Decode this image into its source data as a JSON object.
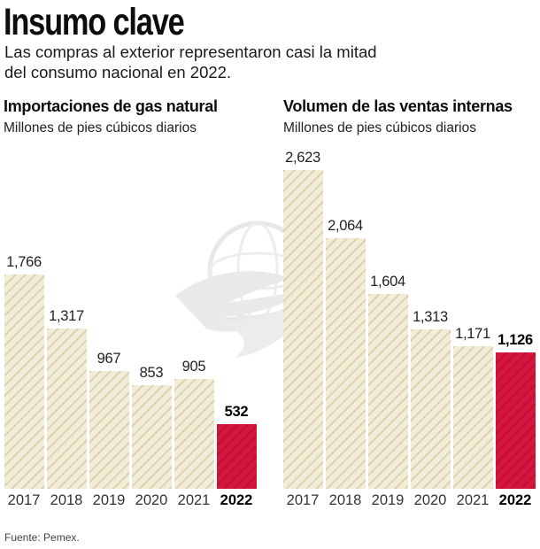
{
  "header": {
    "title": "Insumo clave",
    "subtitle_line1": "Las compras al exterior representaron casi la mitad",
    "subtitle_line2": "del consumo nacional en 2022."
  },
  "source": "Fuente: Pemex.",
  "watermark_icon": "eagle-globe-watermark",
  "colors": {
    "bar_beige": "#f2edd9",
    "bar_beige_hatch": "#dcd2ad",
    "bar_red": "#d5163e",
    "bar_red_hatch": "#c00f33",
    "text": "#111111"
  },
  "chart_data": [
    {
      "type": "bar",
      "title": "Importaciones de gas natural",
      "subtitle": "Millones de pies cúbicos diarios",
      "categories": [
        "2017",
        "2018",
        "2019",
        "2020",
        "2021",
        "2022"
      ],
      "values": [
        1766,
        1317,
        967,
        853,
        905,
        532
      ],
      "value_labels": [
        "1,766",
        "1,317",
        "967",
        "853",
        "905",
        "532"
      ],
      "highlight_index": 5,
      "ylim": [
        0,
        2700
      ],
      "grid": false,
      "legend": "none"
    },
    {
      "type": "bar",
      "title": "Volumen de las ventas internas",
      "subtitle": "Millones de pies cúbicos diarios",
      "categories": [
        "2017",
        "2018",
        "2019",
        "2020",
        "2021",
        "2022"
      ],
      "values": [
        2623,
        2064,
        1604,
        1313,
        1171,
        1126
      ],
      "value_labels": [
        "2,623",
        "2,064",
        "1,604",
        "1,313",
        "1,171",
        "1,126"
      ],
      "highlight_index": 5,
      "ylim": [
        0,
        2700
      ],
      "grid": false,
      "legend": "none"
    }
  ]
}
